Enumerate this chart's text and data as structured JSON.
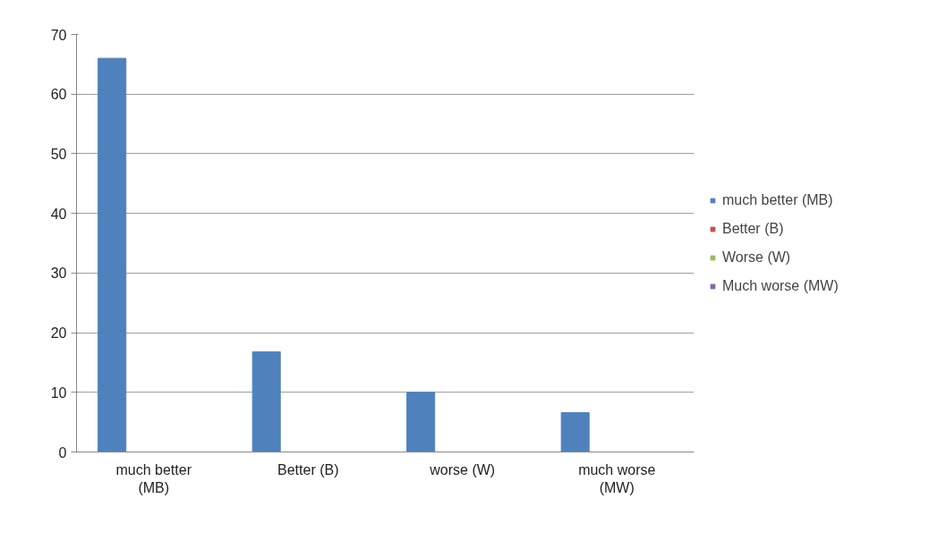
{
  "chart_data": {
    "type": "bar",
    "categories": [
      "much better (MB)",
      "Better (B)",
      "worse (W)",
      "much worse (MW)"
    ],
    "series": [
      {
        "name": "much better (MB)",
        "color": "#4f81bd",
        "values": [
          66,
          16.8,
          10,
          6.6
        ]
      },
      {
        "name": "Better (B)",
        "color": "#c0504d",
        "values": [
          0,
          0,
          0,
          0
        ]
      },
      {
        "name": "Worse (W)",
        "color": "#9bbb59",
        "values": [
          0,
          0,
          0,
          0
        ]
      },
      {
        "name": "Much worse (MW)",
        "color": "#8064a2",
        "values": [
          0,
          0,
          0,
          0
        ]
      }
    ],
    "ylim": [
      0,
      70
    ],
    "yticks": [
      0,
      10,
      20,
      30,
      40,
      50,
      60,
      70
    ],
    "grid": "y",
    "legend": "right"
  }
}
